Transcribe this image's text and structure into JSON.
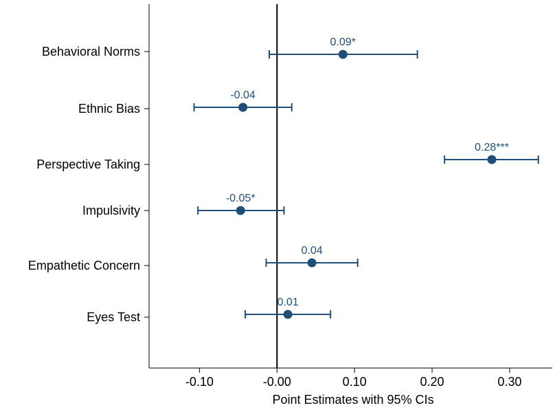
{
  "chart_data": {
    "type": "scatter",
    "subtype": "coefficient-plot-with-confidence-intervals",
    "xlabel": "Point Estimates with 95% CIs",
    "xlim": [
      -0.165,
      0.355
    ],
    "xticks": [
      -0.1,
      -0.0,
      0.1,
      0.2,
      0.3
    ],
    "xtick_labels": [
      "-0.10",
      "-0.00",
      "0.10",
      "0.20",
      "0.30"
    ],
    "reference_line": 0,
    "grid": false,
    "color": "#1f4e79",
    "rows": [
      {
        "label": "Behavioral Norms",
        "estimate": 0.085,
        "ci_low": -0.01,
        "ci_high": 0.181,
        "data_label": "0.09*"
      },
      {
        "label": "Ethnic Bias",
        "estimate": -0.044,
        "ci_low": -0.107,
        "ci_high": 0.019,
        "data_label": "-0.04"
      },
      {
        "label": "Perspective Taking",
        "estimate": 0.277,
        "ci_low": 0.216,
        "ci_high": 0.337,
        "data_label": "0.28***"
      },
      {
        "label": "Impulsivity",
        "estimate": -0.047,
        "ci_low": -0.102,
        "ci_high": 0.009,
        "data_label": "-0.05*"
      },
      {
        "label": "Empathetic Concern",
        "estimate": 0.045,
        "ci_low": -0.014,
        "ci_high": 0.104,
        "data_label": "0.04"
      },
      {
        "label": "Eyes Test",
        "estimate": 0.014,
        "ci_low": -0.041,
        "ci_high": 0.069,
        "data_label": "0.01"
      }
    ]
  }
}
